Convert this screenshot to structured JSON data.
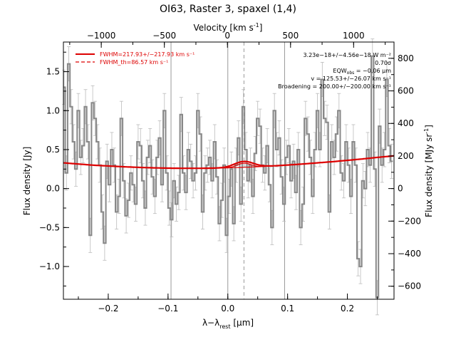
{
  "chart_data": {
    "type": "line",
    "title": "OI63, Raster 3, spaxel (1,4)",
    "xlabel": "λ−λ",
    "xlabel_sub": "rest",
    "xlabel_unit": "[μm]",
    "ylabel": "Flux density [Jy]",
    "ylabel_right": "Flux density [MJy sr",
    "ylabel_right_sup": "-1",
    "ylabel_right_close": "]",
    "xlabel_top": "Velocity [km s",
    "xlabel_top_sup": "-1",
    "xlabel_top_close": "]",
    "xlim": [
      -0.275,
      0.278
    ],
    "ylim": [
      -1.42,
      1.88
    ],
    "ylim_right": [
      -680,
      900
    ],
    "vlim_top": [
      -1300,
      1320
    ],
    "x_ticks": [
      -0.2,
      -0.1,
      0.0,
      0.1,
      0.2
    ],
    "x_tick_labels": [
      "−0.2",
      "−0.1",
      "0.0",
      "0.1",
      "0.2"
    ],
    "y_ticks": [
      -1.0,
      -0.5,
      0.0,
      0.5,
      1.0,
      1.5
    ],
    "y_tick_labels": [
      "−1.0",
      "−0.5",
      "0.0",
      "0.5",
      "1.0",
      "1.5"
    ],
    "y2_ticks": [
      -600,
      -400,
      -200,
      0,
      200,
      400,
      600,
      800
    ],
    "y2_tick_labels": [
      "−600",
      "−400",
      "−200",
      "0",
      "200",
      "400",
      "600",
      "800"
    ],
    "v_ticks": [
      -1000,
      -500,
      0,
      500,
      1000
    ],
    "v_tick_labels": [
      "−1000",
      "−500",
      "0",
      "500",
      "1000"
    ],
    "vertical_lines": [
      -0.095,
      0.0,
      0.095
    ],
    "dashed_line": 0.027,
    "legend": {
      "position": "top-left",
      "entries": [
        {
          "label": "FWHM=217.93+/−217.93 km s⁻¹",
          "style": "solid",
          "color": "#dd0000"
        },
        {
          "label": "FWHM_th=86.57 km s⁻¹",
          "style": "dashed",
          "color": "#dd0000"
        }
      ]
    },
    "annotations": [
      "3.23e−18+/−4.56e−18 W m⁻²",
      "0.70σ",
      "EQW",
      "obs",
      " = −0.06 μm",
      "v = 125.53+/−26.07 km s⁻¹",
      "Broadening = 200.00+/−200.00 km s⁻¹"
    ],
    "series": [
      {
        "style": "step",
        "color": "#888888",
        "x": [
          -0.274,
          -0.27,
          -0.266,
          -0.262,
          -0.258,
          -0.254,
          -0.25,
          -0.246,
          -0.242,
          -0.238,
          -0.234,
          -0.23,
          -0.226,
          -0.222,
          -0.218,
          -0.214,
          -0.21,
          -0.206,
          -0.202,
          -0.198,
          -0.194,
          -0.19,
          -0.186,
          -0.182,
          -0.178,
          -0.174,
          -0.17,
          -0.166,
          -0.162,
          -0.158,
          -0.154,
          -0.15,
          -0.146,
          -0.142,
          -0.138,
          -0.134,
          -0.13,
          -0.126,
          -0.122,
          -0.118,
          -0.114,
          -0.11,
          -0.106,
          -0.102,
          -0.098,
          -0.094,
          -0.09,
          -0.086,
          -0.082,
          -0.078,
          -0.074,
          -0.07,
          -0.066,
          -0.062,
          -0.058,
          -0.054,
          -0.05,
          -0.046,
          -0.042,
          -0.038,
          -0.034,
          -0.03,
          -0.026,
          -0.022,
          -0.018,
          -0.014,
          -0.01,
          -0.006,
          -0.002,
          0.002,
          0.006,
          0.01,
          0.014,
          0.018,
          0.022,
          0.026,
          0.03,
          0.034,
          0.038,
          0.042,
          0.046,
          0.05,
          0.054,
          0.058,
          0.062,
          0.066,
          0.07,
          0.074,
          0.078,
          0.082,
          0.086,
          0.09,
          0.094,
          0.098,
          0.102,
          0.106,
          0.11,
          0.114,
          0.118,
          0.122,
          0.126,
          0.13,
          0.134,
          0.138,
          0.142,
          0.146,
          0.15,
          0.154,
          0.158,
          0.162,
          0.166,
          0.17,
          0.174,
          0.178,
          0.182,
          0.186,
          0.19,
          0.194,
          0.198,
          0.202,
          0.206,
          0.21,
          0.214,
          0.218,
          0.222,
          0.226,
          0.23,
          0.234,
          0.238,
          0.242,
          0.246,
          0.25,
          0.254,
          0.258,
          0.262,
          0.266,
          0.27,
          0.274
        ],
        "values": [
          1.3,
          0.2,
          1.6,
          1.05,
          0.6,
          0.25,
          1.0,
          0.4,
          0.55,
          1.05,
          0.6,
          -0.6,
          1.1,
          0.9,
          0.6,
          0.3,
          -0.3,
          -0.7,
          0.35,
          0.05,
          0.5,
          0.3,
          -0.3,
          -0.1,
          0.9,
          0.1,
          -0.35,
          -0.15,
          0.2,
          0.05,
          -0.2,
          0.6,
          0.55,
          0.1,
          -0.25,
          0.4,
          0.55,
          0.15,
          -0.1,
          0.4,
          0.65,
          0.05,
          1.0,
          0.2,
          -0.25,
          -0.4,
          0.1,
          -0.2,
          -0.05,
          0.95,
          0.2,
          -0.05,
          0.5,
          0.35,
          0.1,
          0.2,
          1.0,
          0.7,
          -0.3,
          0.2,
          0.3,
          0.4,
          0.1,
          0.6,
          0.15,
          -0.45,
          -0.15,
          0.3,
          -0.6,
          -0.1,
          0.25,
          -0.45,
          0.3,
          0.65,
          -0.2,
          1.05,
          0.5,
          0.1,
          0.3,
          -0.1,
          0.45,
          0.9,
          0.8,
          0.3,
          0.2,
          0.55,
          0.05,
          -0.5,
          1.0,
          0.5,
          0.65,
          0.15,
          -0.2,
          0.4,
          0.55,
          0.1,
          0.35,
          -0.05,
          0.5,
          -0.5,
          -0.2,
          0.9,
          0.7,
          0.4,
          -0.1,
          0.5,
          1.0,
          0.5,
          1.4,
          0.9,
          0.85,
          -0.3,
          0.6,
          0.4,
          0.7,
          1.0,
          0.2,
          0.1,
          0.6,
          0.3,
          -0.1,
          0.6,
          0.3,
          -0.9,
          -1.0,
          0.1,
          0.0,
          0.5,
          0.3,
          1.7,
          0.25,
          -1.4,
          0.8,
          0.3,
          0.5,
          1.4,
          0.55,
          0.35
        ],
        "err": 0.22
      },
      {
        "style": "line",
        "color": "#dd0000",
        "x": [
          -0.275,
          -0.25,
          -0.225,
          -0.2,
          -0.175,
          -0.15,
          -0.125,
          -0.1,
          -0.075,
          -0.05,
          -0.025,
          0.0,
          0.025,
          0.05,
          0.075,
          0.1,
          0.125,
          0.15,
          0.175,
          0.2,
          0.225,
          0.25,
          0.278
        ],
        "values": [
          0.33,
          0.315,
          0.3,
          0.29,
          0.28,
          0.272,
          0.266,
          0.262,
          0.26,
          0.26,
          0.262,
          0.266,
          0.272,
          0.28,
          0.29,
          0.302,
          0.315,
          0.33,
          0.345,
          0.362,
          0.38,
          0.4,
          0.42
        ]
      }
    ],
    "gaussian": {
      "center": 0.027,
      "amplitude": 0.075,
      "sigma": 0.016
    }
  }
}
